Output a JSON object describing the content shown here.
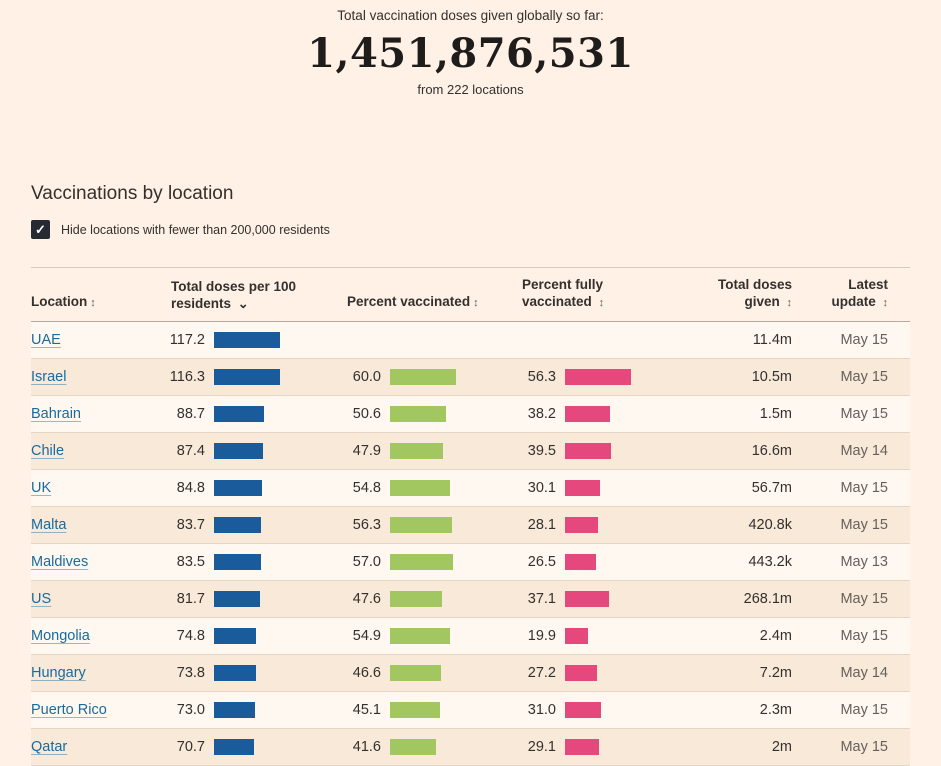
{
  "colors": {
    "background": "#FFF1E5",
    "text": "#33302E",
    "muted": "#66605C",
    "link": "#176BA0",
    "bar_blue": "#1A5C9B",
    "bar_green": "#A2C660",
    "bar_pink": "#E5487D"
  },
  "counter": {
    "subtitle": "Total vaccination doses given globally so far:",
    "total": "1,451,876,531",
    "caption": "from 222 locations"
  },
  "section": {
    "title": "Vaccinations by location",
    "filter_label": "Hide locations with fewer than 200,000 residents",
    "filter_checked": true,
    "filter_check_glyph": "✓"
  },
  "table": {
    "columns": [
      {
        "label": "Location",
        "sort_icon": "↕",
        "sort_active": false
      },
      {
        "label": "Total doses per 100 residents",
        "sort_icon": "⌄",
        "sort_active": true
      },
      {
        "label": "Percent vaccinated",
        "sort_icon": "↕",
        "sort_active": false
      },
      {
        "label": "Percent fully vaccinated",
        "sort_icon": "↕",
        "sort_active": false
      },
      {
        "label": "Total doses given",
        "sort_icon": "↕",
        "sort_active": false
      },
      {
        "label": "Latest update",
        "sort_icon": "↕",
        "sort_active": false
      }
    ],
    "rows": [
      {
        "location": "UAE",
        "doses_per_100": 117.2,
        "pct_vaccinated": null,
        "pct_fully": null,
        "total_given": "11.4m",
        "latest": "May 15"
      },
      {
        "location": "Israel",
        "doses_per_100": 116.3,
        "pct_vaccinated": 60.0,
        "pct_fully": 56.3,
        "total_given": "10.5m",
        "latest": "May 15"
      },
      {
        "location": "Bahrain",
        "doses_per_100": 88.7,
        "pct_vaccinated": 50.6,
        "pct_fully": 38.2,
        "total_given": "1.5m",
        "latest": "May 15"
      },
      {
        "location": "Chile",
        "doses_per_100": 87.4,
        "pct_vaccinated": 47.9,
        "pct_fully": 39.5,
        "total_given": "16.6m",
        "latest": "May 14"
      },
      {
        "location": "UK",
        "doses_per_100": 84.8,
        "pct_vaccinated": 54.8,
        "pct_fully": 30.1,
        "total_given": "56.7m",
        "latest": "May 15"
      },
      {
        "location": "Malta",
        "doses_per_100": 83.7,
        "pct_vaccinated": 56.3,
        "pct_fully": 28.1,
        "total_given": "420.8k",
        "latest": "May 15"
      },
      {
        "location": "Maldives",
        "doses_per_100": 83.5,
        "pct_vaccinated": 57.0,
        "pct_fully": 26.5,
        "total_given": "443.2k",
        "latest": "May 13"
      },
      {
        "location": "US",
        "doses_per_100": 81.7,
        "pct_vaccinated": 47.6,
        "pct_fully": 37.1,
        "total_given": "268.1m",
        "latest": "May 15"
      },
      {
        "location": "Mongolia",
        "doses_per_100": 74.8,
        "pct_vaccinated": 54.9,
        "pct_fully": 19.9,
        "total_given": "2.4m",
        "latest": "May 15"
      },
      {
        "location": "Hungary",
        "doses_per_100": 73.8,
        "pct_vaccinated": 46.6,
        "pct_fully": 27.2,
        "total_given": "7.2m",
        "latest": "May 14"
      },
      {
        "location": "Puerto Rico",
        "doses_per_100": 73.0,
        "pct_vaccinated": 45.1,
        "pct_fully": 31.0,
        "total_given": "2.3m",
        "latest": "May 15"
      },
      {
        "location": "Qatar",
        "doses_per_100": 70.7,
        "pct_vaccinated": 41.6,
        "pct_fully": 29.1,
        "total_given": "2m",
        "latest": "May 15"
      }
    ]
  }
}
